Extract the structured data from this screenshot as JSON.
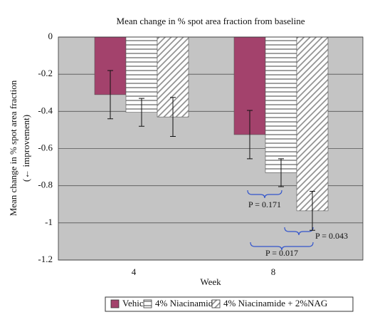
{
  "chart_data": {
    "type": "bar",
    "title": "Mean change in % spot area fraction from baseline",
    "y_label": [
      "Mean change in % spot area fraction",
      "(← improvement)"
    ],
    "x_label": "Week",
    "categories": [
      "4",
      "8"
    ],
    "series": [
      {
        "name": "Vehicle",
        "color": "#a3426c",
        "pattern": "solid",
        "values": [
          -0.31,
          -0.525
        ],
        "errors": [
          0.13,
          0.13
        ]
      },
      {
        "name": "4% Niacinamide",
        "color": "#ffffff",
        "pattern": "horizontal",
        "values": [
          -0.405,
          -0.73
        ],
        "errors": [
          0.075,
          0.075
        ]
      },
      {
        "name": "4% Niacinamide + 2%NAG",
        "color": "#ffffff",
        "pattern": "diagonal",
        "values": [
          -0.43,
          -0.935
        ],
        "errors": [
          0.105,
          0.105
        ]
      }
    ],
    "ylim": [
      -1.2,
      0
    ],
    "yticks": [
      0,
      -0.2,
      -0.4,
      -0.6,
      -0.8,
      -1,
      -1.2
    ],
    "grid": true,
    "annotations": [
      "P = 0.171",
      "P = 0.043",
      "P = 0.017"
    ]
  }
}
